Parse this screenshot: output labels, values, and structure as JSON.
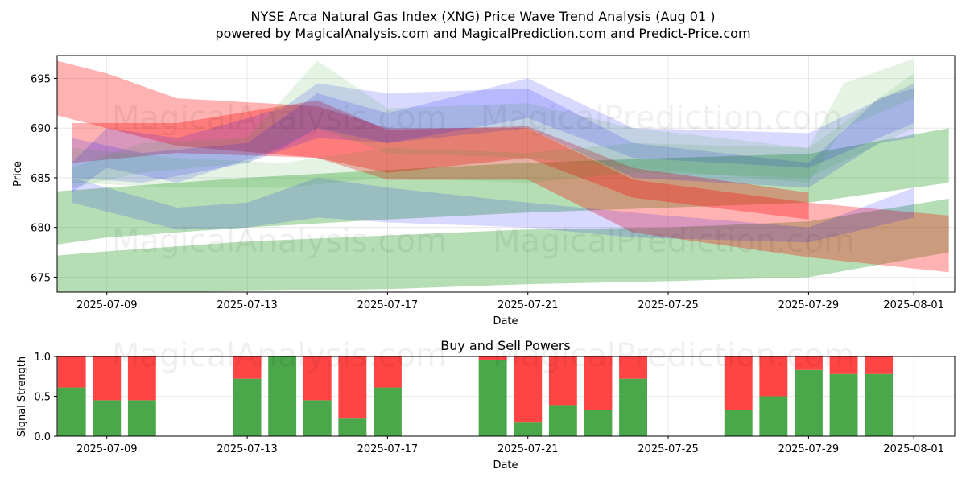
{
  "title_line1": "NYSE Arca Natural Gas Index (XNG) Price Wave Trend Analysis (Aug 01 )",
  "title_line2": "powered by MagicalAnalysis.com and MagicalPrediction.com and Predict-Price.com",
  "watermarks": [
    "MagicalAnalysis.com",
    "MagicalPrediction.com"
  ],
  "colors": {
    "green": "#2ca02c",
    "red": "#ff0000",
    "blue": "#0000ff",
    "bar_green": "#4aa84a",
    "bar_red": "#ff4444"
  },
  "chart_data": [
    {
      "type": "area",
      "title": "",
      "xlabel": "Date",
      "ylabel": "Price",
      "x_ticks": [
        "2025-07-09",
        "2025-07-13",
        "2025-07-17",
        "2025-07-21",
        "2025-07-25",
        "2025-07-29",
        "2025-08-01"
      ],
      "y_ticks": [
        675,
        680,
        685,
        690,
        695
      ],
      "ylim": [
        673.5,
        697.3
      ],
      "xlim": [
        "2025-07-07T14:00",
        "2025-08-02T04:00"
      ],
      "series": [
        {
          "name": "green-band-1",
          "color": "green",
          "alpha": 0.35,
          "x": [
            "2025-07-07",
            "2025-07-09",
            "2025-07-13",
            "2025-07-17",
            "2025-07-21",
            "2025-07-25",
            "2025-07-29",
            "2025-08-02"
          ],
          "upper": [
            677.0,
            677.6,
            678.6,
            679.2,
            679.8,
            680.0,
            680.6,
            682.9
          ],
          "lower": [
            673.0,
            673.4,
            673.6,
            673.8,
            674.3,
            674.6,
            675.0,
            677.5
          ]
        },
        {
          "name": "green-band-2",
          "color": "green",
          "alpha": 0.35,
          "x": [
            "2025-07-07",
            "2025-07-09",
            "2025-07-13",
            "2025-07-17",
            "2025-07-21",
            "2025-07-25",
            "2025-07-29",
            "2025-08-02"
          ],
          "upper": [
            683.5,
            684.0,
            685.0,
            685.8,
            686.5,
            687.0,
            687.4,
            690.0
          ],
          "lower": [
            678.0,
            679.0,
            680.0,
            680.8,
            681.5,
            682.0,
            682.5,
            684.5
          ]
        },
        {
          "name": "red-band-1",
          "color": "red",
          "alpha": 0.3,
          "x": [
            "2025-07-07",
            "2025-07-09",
            "2025-07-11",
            "2025-07-15",
            "2025-07-17",
            "2025-07-21",
            "2025-07-24",
            "2025-07-29",
            "2025-08-02"
          ],
          "upper": [
            697.3,
            695.5,
            693.0,
            692.2,
            690.0,
            690.0,
            684.8,
            682.5,
            681.2
          ],
          "lower": [
            691.8,
            690.0,
            688.2,
            687.0,
            684.8,
            684.8,
            679.5,
            677.0,
            675.5
          ]
        },
        {
          "name": "red-band-2",
          "color": "red",
          "alpha": 0.3,
          "x": [
            "2025-07-08",
            "2025-07-11",
            "2025-07-15",
            "2025-07-17",
            "2025-07-21",
            "2025-07-24",
            "2025-07-29"
          ],
          "upper": [
            690.5,
            690.5,
            692.8,
            689.8,
            690.2,
            686.0,
            683.5
          ],
          "lower": [
            686.5,
            687.5,
            687.0,
            685.5,
            687.0,
            683.0,
            680.8
          ]
        },
        {
          "name": "blue-band-1",
          "color": "blue",
          "alpha": 0.15,
          "x": [
            "2025-07-08",
            "2025-07-10",
            "2025-07-13",
            "2025-07-15",
            "2025-07-17",
            "2025-07-21",
            "2025-07-24",
            "2025-07-29",
            "2025-08-01"
          ],
          "upper": [
            689.0,
            687.5,
            688.5,
            693.5,
            691.5,
            695.0,
            690.0,
            689.5,
            694.5
          ],
          "lower": [
            685.0,
            684.5,
            686.5,
            689.0,
            688.5,
            691.0,
            687.0,
            686.0,
            690.5
          ]
        },
        {
          "name": "blue-band-2",
          "color": "blue",
          "alpha": 0.15,
          "x": [
            "2025-07-08",
            "2025-07-11",
            "2025-07-13",
            "2025-07-15",
            "2025-07-17",
            "2025-07-21",
            "2025-07-24",
            "2025-07-29",
            "2025-08-01"
          ],
          "upper": [
            685.0,
            682.0,
            682.5,
            685.0,
            684.0,
            682.5,
            681.5,
            680.0,
            684.0
          ],
          "lower": [
            682.5,
            679.8,
            680.0,
            681.0,
            680.5,
            680.0,
            679.0,
            678.5,
            681.0
          ]
        },
        {
          "name": "blue-band-3",
          "color": "blue",
          "alpha": 0.15,
          "x": [
            "2025-07-08",
            "2025-07-09",
            "2025-07-11",
            "2025-07-14",
            "2025-07-15",
            "2025-07-17",
            "2025-07-21",
            "2025-07-24",
            "2025-07-29",
            "2025-07-31",
            "2025-08-01"
          ],
          "upper": [
            686.5,
            690.0,
            689.0,
            692.0,
            694.5,
            693.5,
            694.0,
            688.5,
            686.5,
            693.0,
            694.0
          ],
          "lower": [
            683.5,
            686.0,
            684.5,
            688.0,
            690.0,
            688.5,
            690.0,
            685.0,
            684.0,
            688.5,
            689.0
          ]
        },
        {
          "name": "green-band-3",
          "color": "green",
          "alpha": 0.12,
          "x": [
            "2025-07-08",
            "2025-07-10",
            "2025-07-13",
            "2025-07-15",
            "2025-07-17",
            "2025-07-21",
            "2025-07-24",
            "2025-07-29",
            "2025-07-30",
            "2025-08-01"
          ],
          "upper": [
            686.0,
            688.5,
            689.0,
            696.8,
            692.0,
            692.5,
            690.0,
            688.0,
            694.5,
            697.0
          ],
          "lower": [
            684.0,
            685.5,
            686.5,
            690.0,
            687.5,
            687.0,
            686.0,
            684.5,
            690.0,
            693.0
          ]
        },
        {
          "name": "green-band-4",
          "color": "green",
          "alpha": 0.12,
          "x": [
            "2025-07-08",
            "2025-07-11",
            "2025-07-14",
            "2025-07-17",
            "2025-07-21",
            "2025-07-24",
            "2025-07-29",
            "2025-08-01"
          ],
          "upper": [
            688.0,
            687.0,
            686.5,
            688.0,
            687.5,
            688.5,
            688.0,
            695.5
          ],
          "lower": [
            684.5,
            684.0,
            684.0,
            685.0,
            684.5,
            685.5,
            685.0,
            690.0
          ]
        }
      ]
    },
    {
      "type": "bar",
      "title": "Buy and Sell Powers",
      "xlabel": "Date",
      "ylabel": "Signal Strength",
      "x_ticks": [
        "2025-07-09",
        "2025-07-13",
        "2025-07-17",
        "2025-07-21",
        "2025-07-25",
        "2025-07-29",
        "2025-08-01"
      ],
      "y_ticks": [
        "0.0",
        "0.5",
        "1.0"
      ],
      "ylim": [
        0,
        1
      ],
      "categories": [
        "2025-07-08",
        "2025-07-09",
        "2025-07-10",
        "2025-07-13",
        "2025-07-14",
        "2025-07-15",
        "2025-07-16",
        "2025-07-17",
        "2025-07-20",
        "2025-07-21",
        "2025-07-22",
        "2025-07-23",
        "2025-07-24",
        "2025-07-27",
        "2025-07-28",
        "2025-07-29",
        "2025-07-30",
        "2025-07-31"
      ],
      "series": [
        {
          "name": "Buy",
          "color": "bar_green",
          "values": [
            0.61,
            0.45,
            0.45,
            0.72,
            1.0,
            0.45,
            0.22,
            0.61,
            0.95,
            0.17,
            0.39,
            0.33,
            0.72,
            0.33,
            0.5,
            0.83,
            0.78,
            0.78
          ]
        },
        {
          "name": "Sell",
          "color": "bar_red",
          "values": [
            0.39,
            0.55,
            0.55,
            0.28,
            0.0,
            0.55,
            0.78,
            0.39,
            0.05,
            0.83,
            0.61,
            0.67,
            0.28,
            0.67,
            0.5,
            0.17,
            0.22,
            0.22
          ]
        }
      ]
    }
  ]
}
